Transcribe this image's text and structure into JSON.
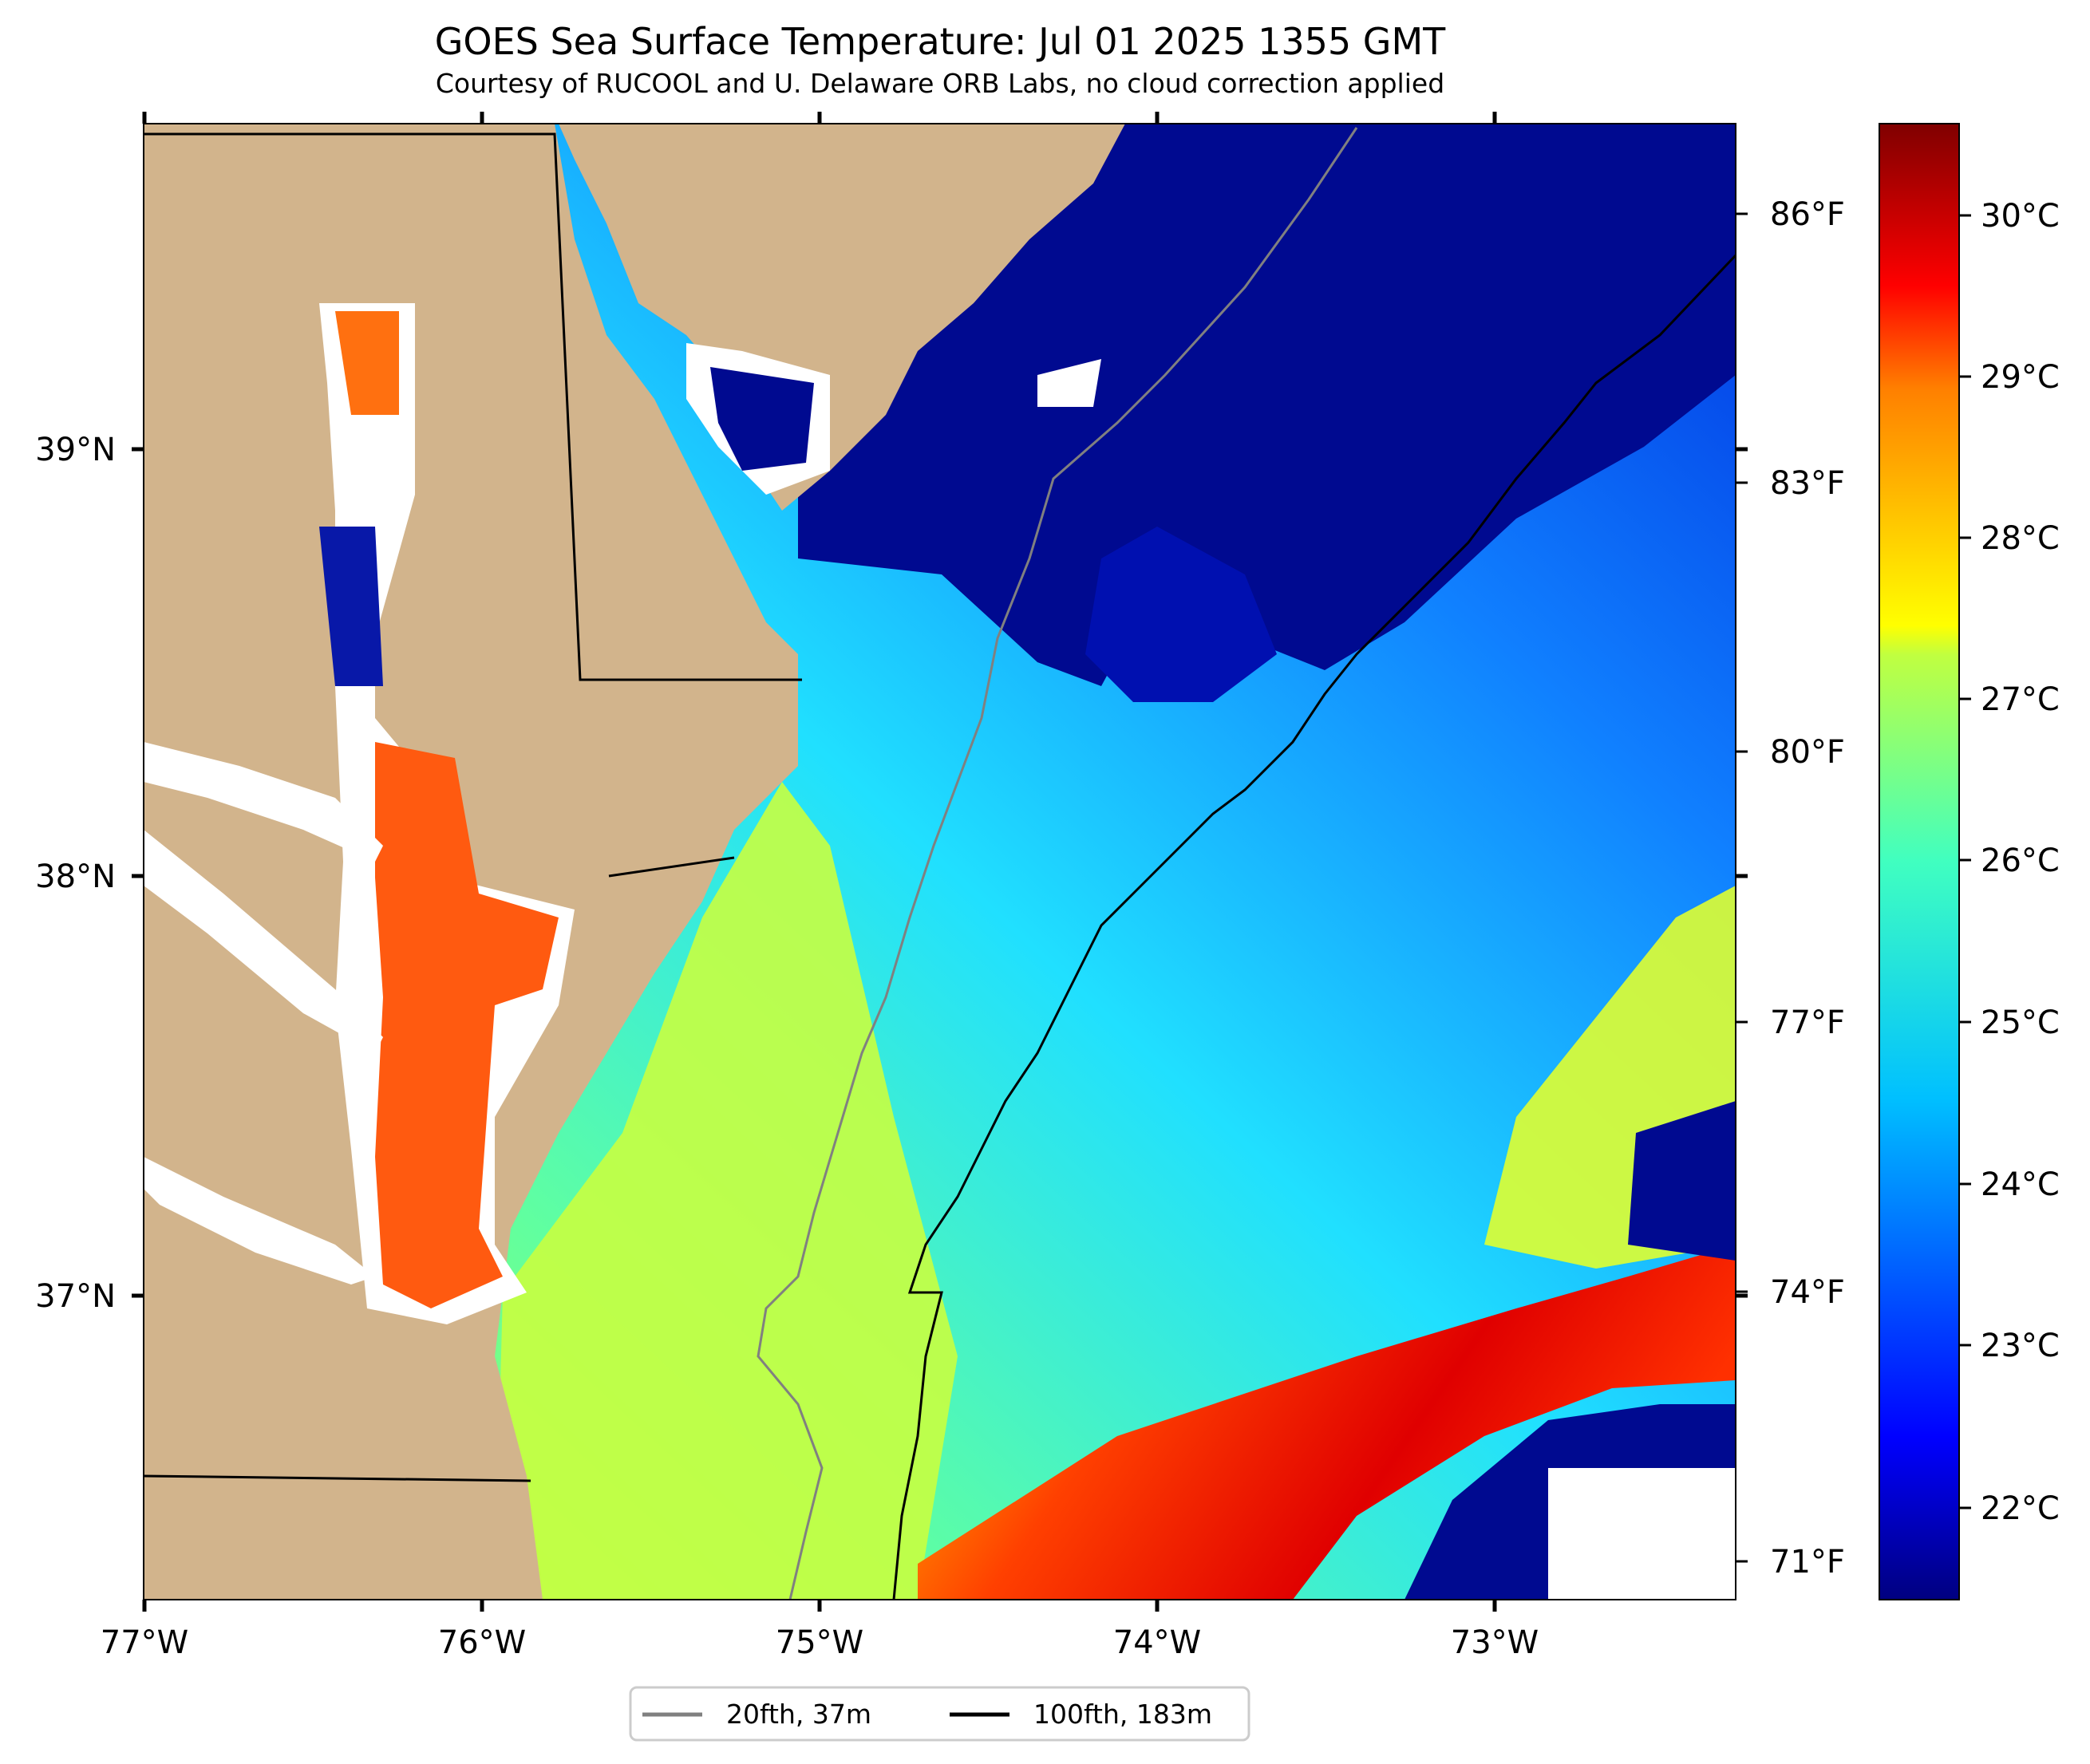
{
  "header": {
    "title": "GOES Sea Surface Temperature: Jul 01 2025 1355 GMT",
    "subtitle": "Courtesy of RUCOOL and U. Delaware ORB Labs, no cloud correction applied"
  },
  "map": {
    "projection": "lon/lat",
    "lon_range": [
      -77.0,
      -72.3
    ],
    "lat_range": [
      36.3,
      39.75
    ],
    "lon_ticks": [
      "77°W",
      "76°W",
      "75°W",
      "74°W",
      "73°W"
    ],
    "lat_ticks": [
      "39°N",
      "38°N",
      "37°N"
    ],
    "land_color": "#d2b48c",
    "coastline_color": "#000000",
    "no_data_color": "#ffffff"
  },
  "colorbar": {
    "celsius_ticks": [
      "30°C",
      "29°C",
      "28°C",
      "27°C",
      "26°C",
      "25°C",
      "24°C",
      "23°C",
      "22°C"
    ],
    "fahrenheit_ticks": [
      "86°F",
      "83°F",
      "80°F",
      "77°F",
      "74°F",
      "71°F"
    ],
    "range_c": [
      21.5,
      30.5
    ],
    "colormap": "jet"
  },
  "legend": {
    "items": [
      {
        "label": "20fth, 37m",
        "color": "#808080"
      },
      {
        "label": "100fth, 183m",
        "color": "#000000"
      }
    ]
  }
}
